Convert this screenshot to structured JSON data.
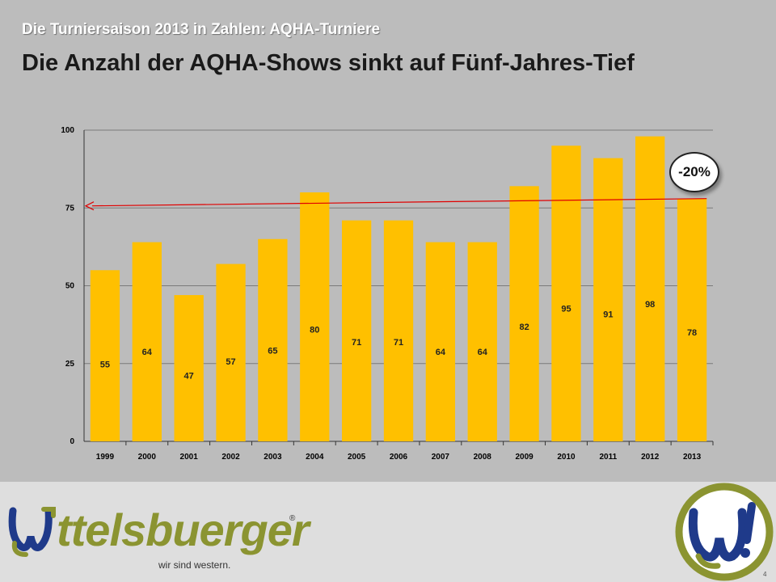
{
  "slide": {
    "subtitle": "Die Turniersaison 2013 in Zahlen: AQHA-Turniere",
    "headline": "Die Anzahl der AQHA-Shows sinkt auf Fünf-Jahres-Tief",
    "page_number": "4"
  },
  "badge": {
    "text": "-20%"
  },
  "footer": {
    "brand": "ttelsbuerger",
    "registered": "®",
    "tagline": "wir sind western."
  },
  "colors": {
    "bar": "#ffc000",
    "plot_background": "#bcbcbc",
    "trend_arrow": "#e00000",
    "brand_green": "#8b9431",
    "brand_blue": "#1f3a8a"
  },
  "chart_data": {
    "type": "bar",
    "title": "",
    "xlabel": "",
    "ylabel": "",
    "categories": [
      "1999",
      "2000",
      "2001",
      "2002",
      "2003",
      "2004",
      "2005",
      "2006",
      "2007",
      "2008",
      "2009",
      "2010",
      "2011",
      "2012",
      "2013"
    ],
    "values": [
      55,
      64,
      47,
      57,
      65,
      80,
      71,
      71,
      64,
      64,
      82,
      95,
      91,
      98,
      78
    ],
    "ylim": [
      0,
      100
    ],
    "yticks": [
      0,
      25,
      50,
      75,
      100
    ],
    "grid": true,
    "legend": "none",
    "annotation": {
      "type": "arrow",
      "from_x": "2013",
      "to_x": "1999",
      "y": 78,
      "label": "-20%"
    }
  }
}
